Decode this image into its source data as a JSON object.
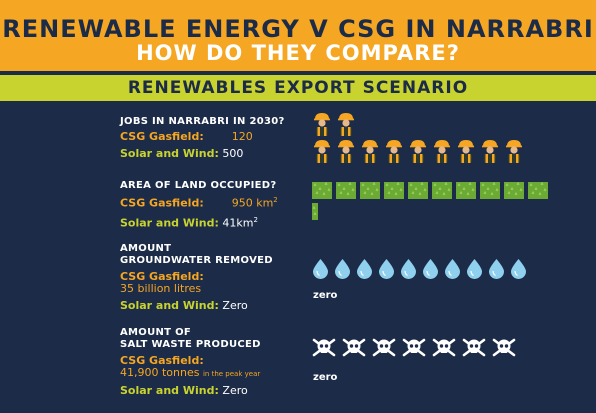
{
  "header": {
    "title": "RENEWABLE ENERGY V CSG IN NARRABRI",
    "subtitle": "HOW DO THEY COMPARE?"
  },
  "band": {
    "label": "RENEWABLES EXPORT SCENARIO"
  },
  "jobs": {
    "question": "JOBS IN NARRABRI IN 2030?",
    "csg_label": "CSG Gasfield:",
    "csg_value": "120",
    "sw_label": "Solar and Wind:",
    "sw_value": "500",
    "csg_icons": 2,
    "sw_icons": 9,
    "icon": "worker-icon"
  },
  "land": {
    "question": "AREA OF LAND OCCUPIED?",
    "csg_label": "CSG Gasfield:",
    "csg_value": "950 km",
    "csg_unit_sup": "2",
    "sw_label": "Solar and Wind:",
    "sw_value": "41km",
    "sw_unit_sup": "2",
    "csg_icons": 10,
    "sw_icons": 1,
    "icon": "grass-block-icon"
  },
  "water": {
    "question_line1": "AMOUNT",
    "question_line2": "GROUNDWATER REMOVED",
    "csg_label": "CSG Gasfield:",
    "csg_value": "35 billion litres",
    "sw_label": "Solar and Wind:",
    "sw_value": "Zero",
    "csg_icons": 10,
    "zero_text": "zero",
    "icon": "water-drop-icon"
  },
  "salt": {
    "question_line1": "AMOUNT OF",
    "question_line2": "SALT WASTE PRODUCED",
    "csg_label": "CSG Gasfield:",
    "csg_value": "41,900 tonnes",
    "csg_note": "in the peak year",
    "sw_label": "Solar and Wind:",
    "sw_value": "Zero",
    "csg_icons": 7,
    "zero_text": "zero",
    "icon": "skull-crossbones-icon"
  },
  "colors": {
    "background": "#1c2b47",
    "orange": "#f5a623",
    "green": "#c9d32f",
    "drop": "#8fd0ee",
    "grass": "#6aaa35"
  }
}
